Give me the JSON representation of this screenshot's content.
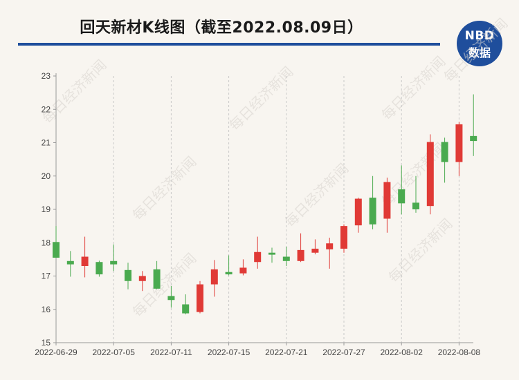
{
  "header": {
    "title": "回天新材K线图（截至2022.08.09日）",
    "logo_top": "NBD",
    "logo_bottom": "数据"
  },
  "watermark_text": "每日经济新闻",
  "colors": {
    "up": "#e03a36",
    "down": "#4aaa4f",
    "accent": "#1f4e9c",
    "grid": "#c9c9c9"
  },
  "chart_data": {
    "type": "candlestick",
    "title": "回天新材K线图（截至2022.08.09日）",
    "ylim": [
      15,
      23
    ],
    "yticks": [
      15,
      16,
      17,
      18,
      19,
      20,
      21,
      22,
      23
    ],
    "xtick_labels": [
      "2022-06-29",
      "2022-07-05",
      "2022-07-11",
      "2022-07-15",
      "2022-07-21",
      "2022-07-27",
      "2022-08-02",
      "2022-08-08"
    ],
    "xtick_index": [
      0,
      4,
      8,
      12,
      16,
      20,
      24,
      28
    ],
    "grid": "vertical",
    "candles": [
      {
        "open": 18.02,
        "close": 17.55,
        "high": 18.5,
        "low": 17.55
      },
      {
        "open": 17.45,
        "close": 17.35,
        "high": 17.75,
        "low": 16.98
      },
      {
        "open": 17.3,
        "close": 17.58,
        "high": 18.18,
        "low": 16.96
      },
      {
        "open": 17.42,
        "close": 17.05,
        "high": 17.46,
        "low": 16.98
      },
      {
        "open": 17.45,
        "close": 17.35,
        "high": 17.95,
        "low": 17.15
      },
      {
        "open": 17.18,
        "close": 16.85,
        "high": 17.4,
        "low": 16.6
      },
      {
        "open": 16.85,
        "close": 17.0,
        "high": 17.15,
        "low": 16.55
      },
      {
        "open": 17.2,
        "close": 16.62,
        "high": 17.45,
        "low": 16.6
      },
      {
        "open": 16.4,
        "close": 16.28,
        "high": 16.7,
        "low": 16.05
      },
      {
        "open": 16.15,
        "close": 15.88,
        "high": 16.45,
        "low": 15.85
      },
      {
        "open": 15.92,
        "close": 16.75,
        "high": 16.85,
        "low": 15.88
      },
      {
        "open": 16.75,
        "close": 17.2,
        "high": 17.48,
        "low": 16.38
      },
      {
        "open": 17.12,
        "close": 17.05,
        "high": 17.62,
        "low": 17.02
      },
      {
        "open": 17.08,
        "close": 17.25,
        "high": 17.5,
        "low": 17.02
      },
      {
        "open": 17.42,
        "close": 17.72,
        "high": 18.18,
        "low": 17.22
      },
      {
        "open": 17.7,
        "close": 17.64,
        "high": 17.85,
        "low": 17.4
      },
      {
        "open": 17.58,
        "close": 17.45,
        "high": 17.88,
        "low": 17.3
      },
      {
        "open": 17.45,
        "close": 17.78,
        "high": 18.28,
        "low": 17.42
      },
      {
        "open": 17.7,
        "close": 17.82,
        "high": 18.1,
        "low": 17.65
      },
      {
        "open": 17.8,
        "close": 17.98,
        "high": 18.15,
        "low": 17.22
      },
      {
        "open": 17.82,
        "close": 18.5,
        "high": 18.55,
        "low": 17.7
      },
      {
        "open": 18.52,
        "close": 19.32,
        "high": 19.35,
        "low": 18.3
      },
      {
        "open": 19.35,
        "close": 18.55,
        "high": 20.0,
        "low": 18.4
      },
      {
        "open": 18.72,
        "close": 19.82,
        "high": 19.95,
        "low": 18.3
      },
      {
        "open": 19.6,
        "close": 19.18,
        "high": 20.32,
        "low": 18.85
      },
      {
        "open": 19.2,
        "close": 19.0,
        "high": 20.0,
        "low": 18.9
      },
      {
        "open": 19.1,
        "close": 21.02,
        "high": 21.25,
        "low": 18.85
      },
      {
        "open": 21.02,
        "close": 20.42,
        "high": 21.15,
        "low": 19.8
      },
      {
        "open": 20.42,
        "close": 21.55,
        "high": 21.62,
        "low": 20.0
      },
      {
        "open": 21.2,
        "close": 21.05,
        "high": 22.45,
        "low": 20.6
      }
    ]
  }
}
